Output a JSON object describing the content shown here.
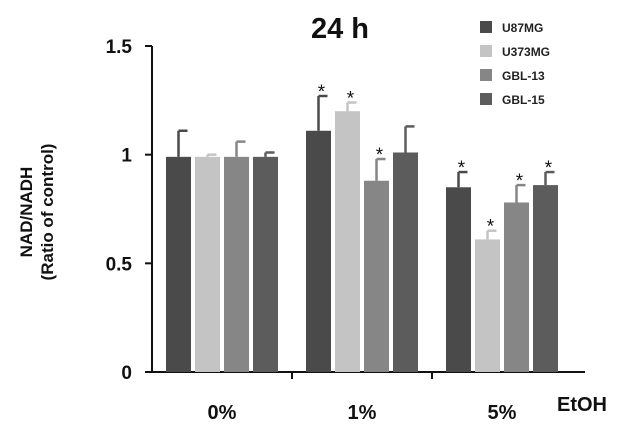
{
  "chart_data": {
    "type": "bar",
    "title": "24 h",
    "ylabel_line1": "NAD/NADH",
    "ylabel_line2": "(Ratio of control)",
    "xlabel": "EtOH",
    "categories": [
      "0%",
      "1%",
      "5%"
    ],
    "ylim": [
      0,
      1.5
    ],
    "yticks": [
      "0",
      "0.5",
      "1",
      "1.5"
    ],
    "grid": false,
    "legend_position": "top-right",
    "series": [
      {
        "name": "U87MG",
        "color": "#4a4a4a",
        "values": [
          0.99,
          1.11,
          0.85
        ],
        "errors": [
          0.12,
          0.16,
          0.07
        ],
        "significant": [
          false,
          true,
          true
        ]
      },
      {
        "name": "U373MG",
        "color": "#c4c4c4",
        "values": [
          0.99,
          1.2,
          0.61
        ],
        "errors": [
          0.01,
          0.04,
          0.04
        ],
        "significant": [
          false,
          true,
          true
        ]
      },
      {
        "name": "GBL-13",
        "color": "#868686",
        "values": [
          0.99,
          0.88,
          0.78
        ],
        "errors": [
          0.07,
          0.1,
          0.08
        ],
        "significant": [
          false,
          true,
          true
        ]
      },
      {
        "name": "GBL-15",
        "color": "#5c5c5c",
        "values": [
          0.99,
          1.01,
          0.86
        ],
        "errors": [
          0.02,
          0.12,
          0.06
        ],
        "significant": [
          false,
          false,
          true
        ]
      }
    ],
    "significance_marker": "*"
  }
}
